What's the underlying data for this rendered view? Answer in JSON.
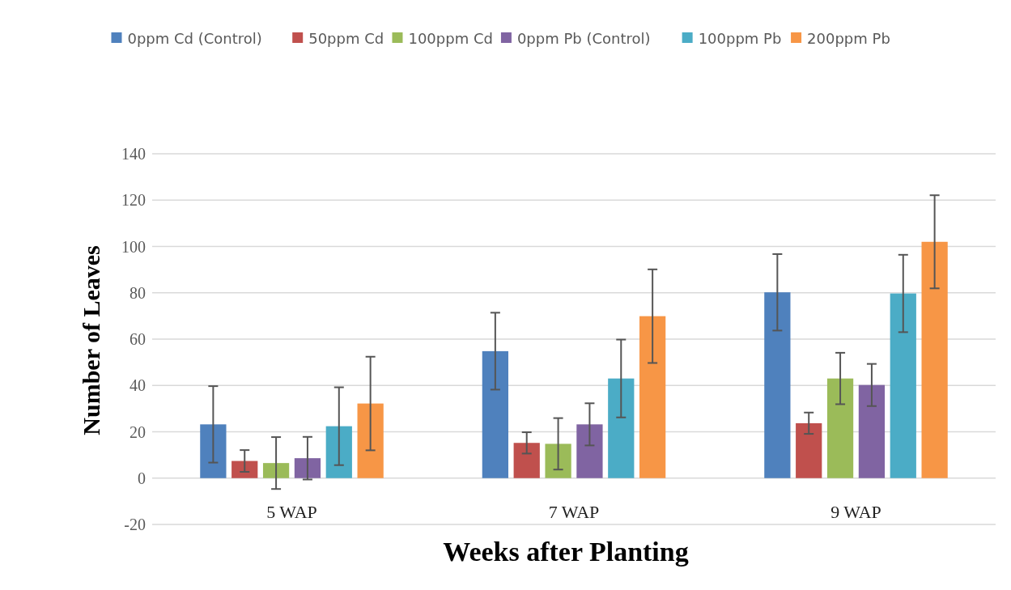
{
  "chart_data": {
    "type": "bar",
    "xlabel": "Weeks after Planting",
    "ylabel": "Number of Leaves",
    "categories": [
      "5 WAP",
      "7 WAP",
      "9 WAP"
    ],
    "series": [
      {
        "name": "0ppm Cd (Control)",
        "color": "#4f81bd",
        "values": [
          23.2,
          54.8,
          80.2
        ],
        "errors": [
          16.5,
          16.6,
          16.5
        ]
      },
      {
        "name": "50ppm Cd",
        "color": "#c0504d",
        "values": [
          7.4,
          15.2,
          23.7
        ],
        "errors": [
          4.7,
          4.6,
          4.6
        ]
      },
      {
        "name": "100ppm Cd",
        "color": "#9bbb59",
        "values": [
          6.5,
          14.8,
          43.0
        ],
        "errors": [
          11.2,
          11.1,
          11.1
        ]
      },
      {
        "name": "0ppm Pb (Control)",
        "color": "#8064a2",
        "values": [
          8.6,
          23.2,
          40.2
        ],
        "errors": [
          9.2,
          9.1,
          9.1
        ]
      },
      {
        "name": "100ppm Pb",
        "color": "#4bacc6",
        "values": [
          22.4,
          43.0,
          79.7
        ],
        "errors": [
          16.8,
          16.8,
          16.7
        ]
      },
      {
        "name": "200ppm Pb",
        "color": "#f79646",
        "values": [
          32.2,
          69.9,
          102.0
        ],
        "errors": [
          20.2,
          20.2,
          20.1
        ]
      }
    ],
    "ylim": [
      -20,
      140
    ],
    "yticks": [
      -20,
      0,
      20,
      40,
      60,
      80,
      100,
      120,
      140
    ],
    "grid": "y",
    "legend": "top"
  }
}
